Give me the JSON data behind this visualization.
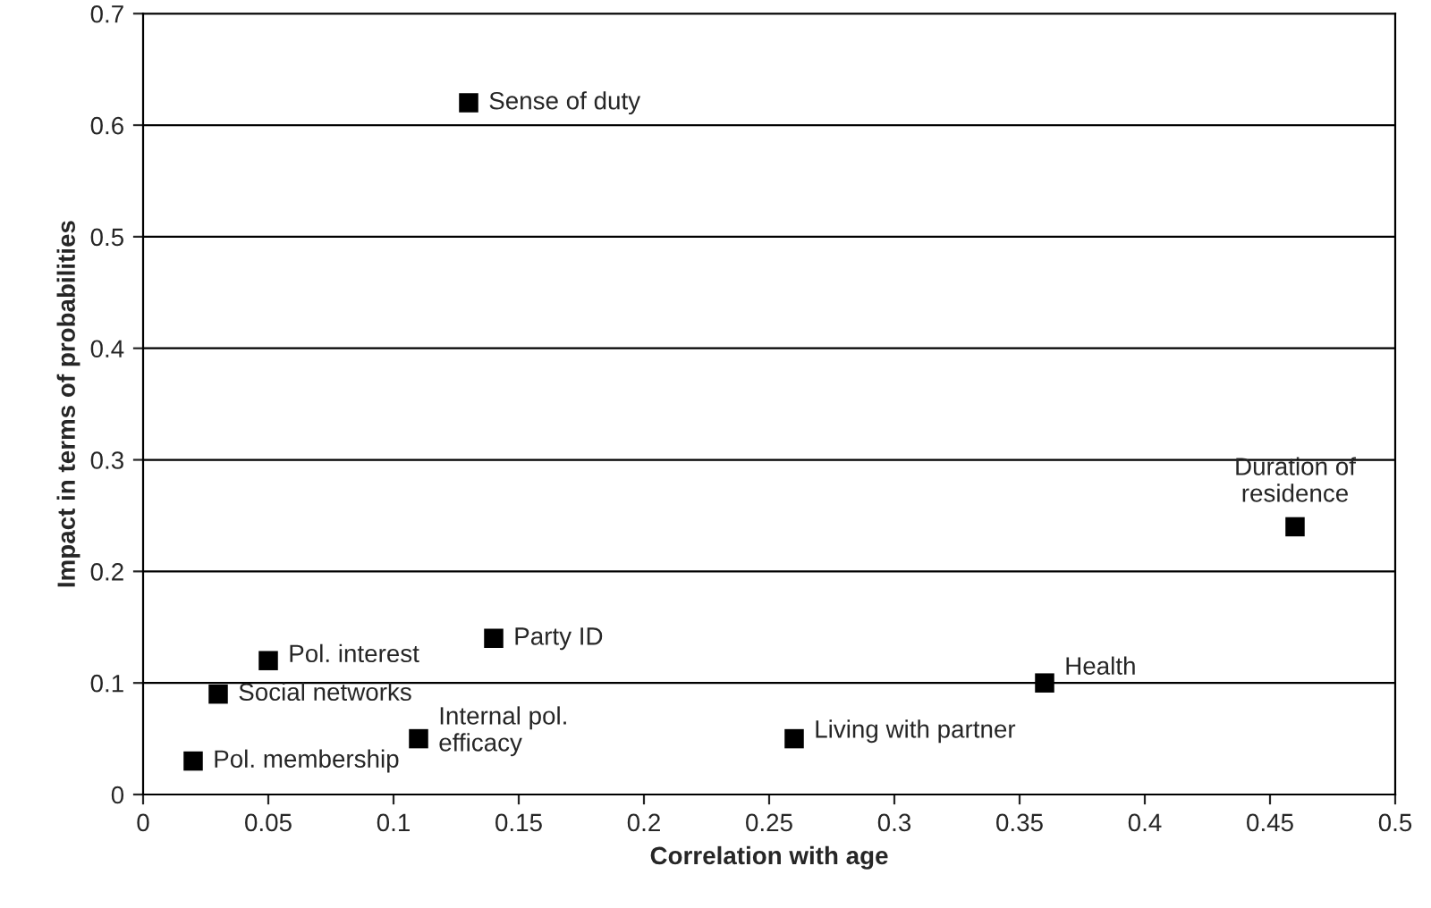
{
  "chart_data": {
    "type": "scatter",
    "xlabel": "Correlation with age",
    "ylabel": "Impact in terms of probabilities",
    "x": [
      0.13,
      0.46,
      0.36,
      0.26,
      0.14,
      0.05,
      0.03,
      0.11,
      0.02
    ],
    "series": [
      {
        "color": "#000000",
        "values": [
          0.62,
          0.24,
          0.1,
          0.05,
          0.14,
          0.12,
          0.09,
          0.05,
          0.03
        ]
      }
    ],
    "annotations": [
      {
        "text": "Sense of duty",
        "x": 0.13,
        "y": 0.62
      },
      {
        "text": "Duration of\nresidence",
        "x": 0.46,
        "y": 0.24
      },
      {
        "text": "Health",
        "x": 0.36,
        "y": 0.1
      },
      {
        "text": "Living with partner",
        "x": 0.26,
        "y": 0.05
      },
      {
        "text": "Party ID",
        "x": 0.14,
        "y": 0.14
      },
      {
        "text": "Pol. interest",
        "x": 0.05,
        "y": 0.12
      },
      {
        "text": "Social networks",
        "x": 0.03,
        "y": 0.09
      },
      {
        "text": "Internal pol.\nefficacy",
        "x": 0.11,
        "y": 0.05
      },
      {
        "text": "Pol. membership",
        "x": 0.02,
        "y": 0.03
      }
    ],
    "xlim": [
      0,
      0.5
    ],
    "xticks": [
      0,
      0.05,
      0.1,
      0.15,
      0.2,
      0.25,
      0.3,
      0.35,
      0.4,
      0.45,
      0.5
    ],
    "ylim": [
      0,
      0.7
    ],
    "yticks": [
      0,
      0.1,
      0.2,
      0.3,
      0.4,
      0.5,
      0.6,
      0.7
    ],
    "grid": "y",
    "marker": "square",
    "legend": false
  }
}
